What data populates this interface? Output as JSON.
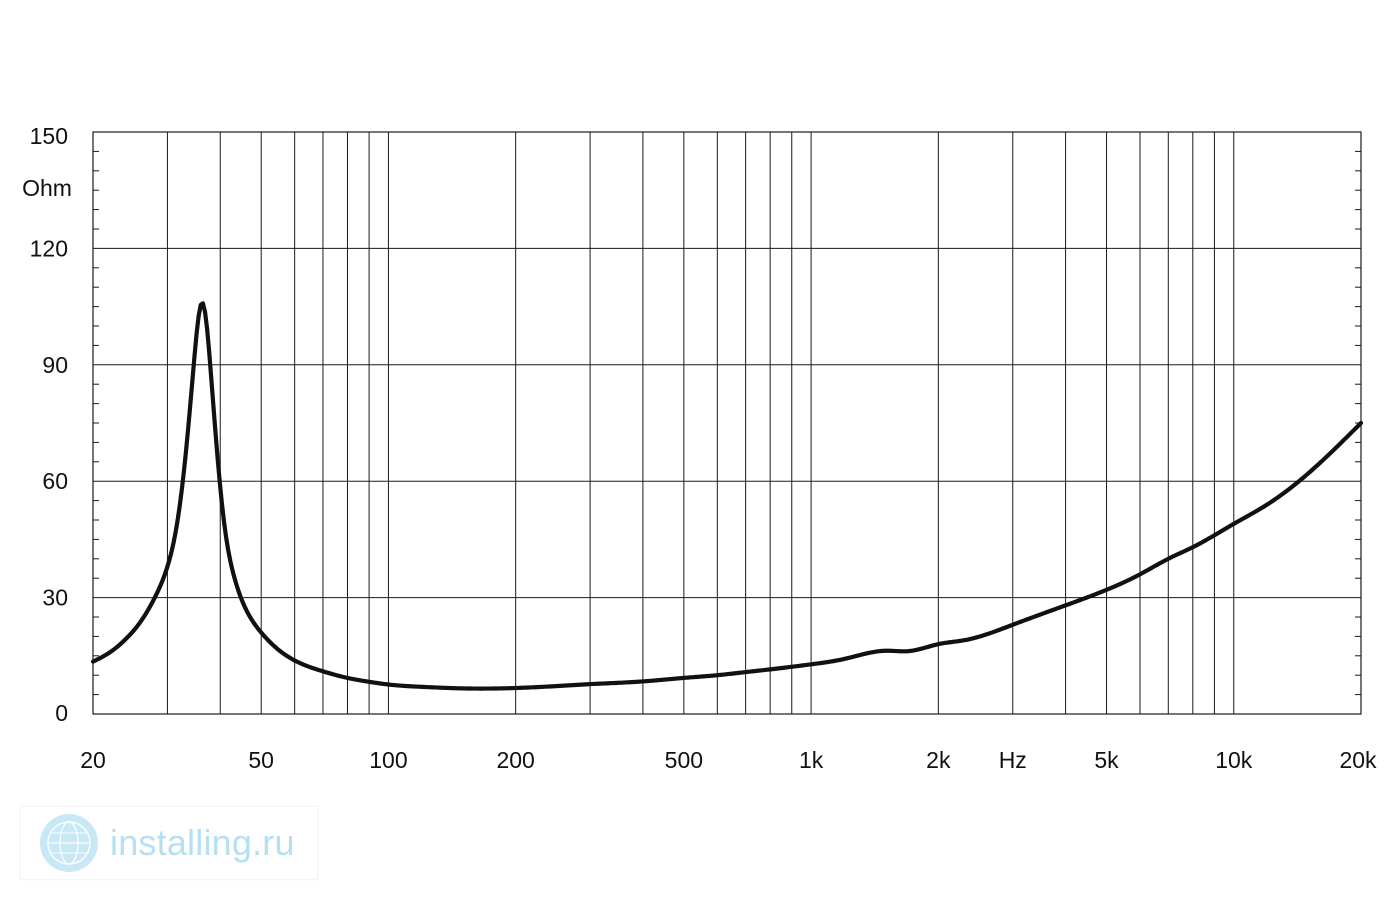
{
  "chart_data": {
    "type": "line",
    "title": "",
    "xlabel": "Hz",
    "ylabel": "Ohm",
    "x_scale": "log",
    "xlim": [
      20,
      20000
    ],
    "ylim": [
      0,
      150
    ],
    "grid": true,
    "x_ticks": [
      {
        "value": 20,
        "label": "20"
      },
      {
        "value": 50,
        "label": "50"
      },
      {
        "value": 100,
        "label": "100"
      },
      {
        "value": 200,
        "label": "200"
      },
      {
        "value": 500,
        "label": "500"
      },
      {
        "value": 1000,
        "label": "1k"
      },
      {
        "value": 2000,
        "label": "2k"
      },
      {
        "value": 5000,
        "label": "5k"
      },
      {
        "value": 10000,
        "label": "10k"
      },
      {
        "value": 20000,
        "label": "20k"
      }
    ],
    "x_grid": [
      30,
      40,
      50,
      60,
      70,
      80,
      90,
      100,
      200,
      300,
      400,
      500,
      600,
      700,
      800,
      900,
      1000,
      2000,
      3000,
      4000,
      5000,
      6000,
      7000,
      8000,
      9000,
      10000
    ],
    "y_ticks": [
      {
        "value": 0,
        "label": "0"
      },
      {
        "value": 30,
        "label": "30"
      },
      {
        "value": 60,
        "label": "60"
      },
      {
        "value": 90,
        "label": "90"
      },
      {
        "value": 120,
        "label": "120"
      },
      {
        "value": 150,
        "label": "150"
      }
    ],
    "series": [
      {
        "color": "#111111",
        "points": [
          [
            20,
            13.5
          ],
          [
            22,
            16
          ],
          [
            24,
            19.5
          ],
          [
            26,
            24
          ],
          [
            28,
            30
          ],
          [
            30,
            38
          ],
          [
            31.5,
            48
          ],
          [
            33,
            65
          ],
          [
            34.5,
            88
          ],
          [
            35.5,
            102
          ],
          [
            36.2,
            106
          ],
          [
            37,
            102
          ],
          [
            38,
            88
          ],
          [
            39.5,
            65
          ],
          [
            41,
            48
          ],
          [
            43,
            36
          ],
          [
            46,
            27
          ],
          [
            50,
            21
          ],
          [
            55,
            16.5
          ],
          [
            60,
            13.8
          ],
          [
            70,
            11
          ],
          [
            80,
            9.3
          ],
          [
            90,
            8.3
          ],
          [
            100,
            7.6
          ],
          [
            120,
            7
          ],
          [
            150,
            6.6
          ],
          [
            200,
            6.7
          ],
          [
            250,
            7.2
          ],
          [
            300,
            7.7
          ],
          [
            400,
            8.4
          ],
          [
            500,
            9.3
          ],
          [
            600,
            10
          ],
          [
            700,
            10.8
          ],
          [
            800,
            11.5
          ],
          [
            1000,
            12.8
          ],
          [
            1200,
            14.2
          ],
          [
            1500,
            16.3
          ],
          [
            1700,
            16.2
          ],
          [
            2000,
            18
          ],
          [
            2300,
            19
          ],
          [
            3000,
            23
          ],
          [
            4000,
            28
          ],
          [
            5000,
            32
          ],
          [
            6000,
            36
          ],
          [
            7000,
            40
          ],
          [
            8000,
            43
          ],
          [
            10000,
            49
          ],
          [
            12000,
            54
          ],
          [
            15000,
            62
          ],
          [
            20000,
            75
          ]
        ]
      }
    ]
  },
  "watermark": {
    "text": "installing.ru",
    "icon": "globe-logo-icon",
    "color": "#b6dff2"
  }
}
